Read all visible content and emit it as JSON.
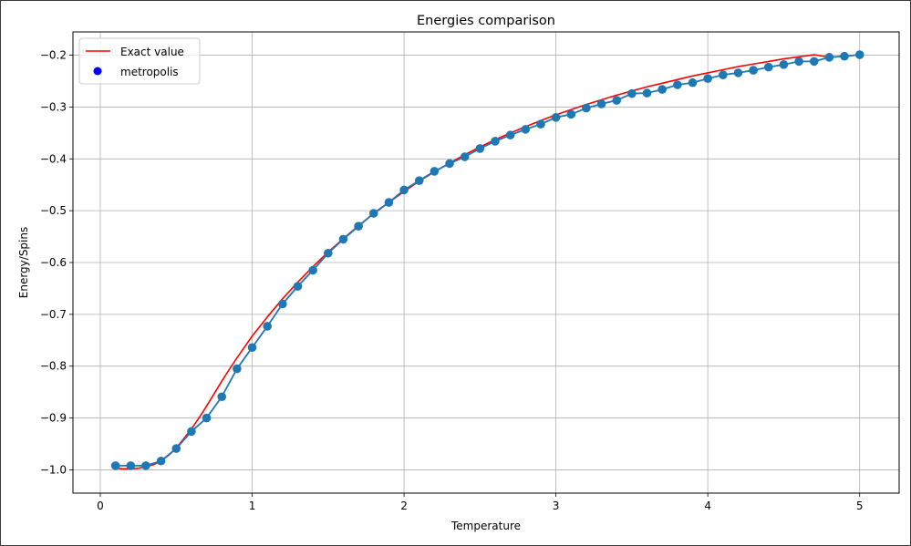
{
  "chart_data": {
    "type": "line",
    "title": "Energies comparison",
    "xlabel": "Temperature",
    "ylabel": "Energy/Spins",
    "xlim": [
      -0.18,
      5.26
    ],
    "ylim": [
      -1.045,
      -0.155
    ],
    "xticks": [
      0,
      1,
      2,
      3,
      4,
      5
    ],
    "xtick_labels": [
      "0",
      "1",
      "2",
      "3",
      "4",
      "5"
    ],
    "yticks": [
      -1.0,
      -0.9,
      -0.8,
      -0.7,
      -0.6,
      -0.5,
      -0.4,
      -0.3,
      -0.2
    ],
    "ytick_labels": [
      "−1.0",
      "−0.9",
      "−0.8",
      "−0.7",
      "−0.6",
      "−0.5",
      "−0.4",
      "−0.3",
      "−0.2"
    ],
    "grid": true,
    "legend_position": "top-left",
    "legend": [
      {
        "label": "Exact value",
        "marker": "line",
        "color": "#ff0000"
      },
      {
        "label": "metropolis",
        "marker": "dot",
        "color": "#0000ff"
      }
    ],
    "series": [
      {
        "name": "Exact value",
        "style": "line",
        "color": "#ff0000",
        "x": [
          0.1,
          0.15,
          0.2,
          0.25,
          0.3,
          0.35,
          0.4,
          0.45,
          0.5,
          0.55,
          0.6,
          0.65,
          0.7,
          0.75,
          0.8,
          0.85,
          0.9,
          0.95,
          1.0,
          1.1,
          1.2,
          1.3,
          1.4,
          1.5,
          1.6,
          1.7,
          1.8,
          1.9,
          2.0,
          2.1,
          2.2,
          2.3,
          2.4,
          2.5,
          2.6,
          2.7,
          2.8,
          2.9,
          3.0,
          3.1,
          3.2,
          3.3,
          3.4,
          3.5,
          3.6,
          3.7,
          3.8,
          3.9,
          4.0,
          4.1,
          4.2,
          4.3,
          4.4,
          4.5,
          4.6,
          4.7,
          4.8,
          4.9,
          5.0
        ],
        "y": [
          -0.997,
          -0.998,
          -0.998,
          -0.997,
          -0.994,
          -0.99,
          -0.983,
          -0.972,
          -0.958,
          -0.94,
          -0.921,
          -0.9,
          -0.877,
          -0.853,
          -0.829,
          -0.806,
          -0.784,
          -0.763,
          -0.742,
          -0.705,
          -0.67,
          -0.638,
          -0.608,
          -0.58,
          -0.554,
          -0.529,
          -0.506,
          -0.484,
          -0.463,
          -0.443,
          -0.425,
          -0.408,
          -0.392,
          -0.377,
          -0.363,
          -0.35,
          -0.338,
          -0.326,
          -0.315,
          -0.305,
          -0.295,
          -0.286,
          -0.277,
          -0.269,
          -0.261,
          -0.254,
          -0.247,
          -0.24,
          -0.234,
          -0.228,
          -0.222,
          -0.217,
          -0.212,
          -0.207,
          -0.203,
          -0.199,
          -0.204,
          -0.202,
          -0.199
        ]
      },
      {
        "name": "metropolis",
        "style": "line+dots",
        "color": "#1f77b4",
        "x": [
          0.1,
          0.2,
          0.3,
          0.4,
          0.5,
          0.6,
          0.7,
          0.8,
          0.9,
          1.0,
          1.1,
          1.2,
          1.3,
          1.4,
          1.5,
          1.6,
          1.7,
          1.8,
          1.9,
          2.0,
          2.1,
          2.2,
          2.3,
          2.4,
          2.5,
          2.6,
          2.7,
          2.8,
          2.9,
          3.0,
          3.1,
          3.2,
          3.3,
          3.4,
          3.5,
          3.6,
          3.7,
          3.8,
          3.9,
          4.0,
          4.1,
          4.2,
          4.3,
          4.4,
          4.5,
          4.6,
          4.7,
          4.8,
          4.9,
          5.0
        ],
        "y": [
          -0.992,
          -0.992,
          -0.992,
          -0.983,
          -0.959,
          -0.926,
          -0.9,
          -0.859,
          -0.805,
          -0.764,
          -0.723,
          -0.68,
          -0.646,
          -0.615,
          -0.582,
          -0.555,
          -0.53,
          -0.505,
          -0.484,
          -0.46,
          -0.442,
          -0.424,
          -0.409,
          -0.396,
          -0.38,
          -0.366,
          -0.354,
          -0.343,
          -0.333,
          -0.32,
          -0.314,
          -0.302,
          -0.294,
          -0.287,
          -0.274,
          -0.273,
          -0.266,
          -0.257,
          -0.253,
          -0.245,
          -0.238,
          -0.234,
          -0.229,
          -0.223,
          -0.218,
          -0.212,
          -0.212,
          -0.204,
          -0.202,
          -0.199
        ]
      }
    ]
  }
}
